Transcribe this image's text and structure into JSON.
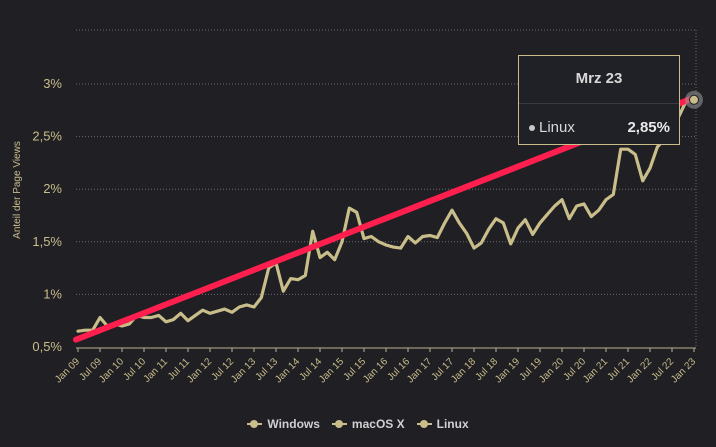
{
  "chart_data": {
    "type": "line",
    "ylabel": "Anteil der Page Views",
    "y_ticks": [
      "0,5%",
      "1%",
      "1,5%",
      "2%",
      "2,5%",
      "3%"
    ],
    "ylim": [
      0.4,
      3.4
    ],
    "x_ticks": [
      "Jan 09",
      "Jul 09",
      "Jan 10",
      "Jul 10",
      "Jan 11",
      "Jul 11",
      "Jan 12",
      "Jul 12",
      "Jan 13",
      "Jul 13",
      "Jan 14",
      "Jul 14",
      "Jan 15",
      "Jul 15",
      "Jan 16",
      "Jul 16",
      "Jan 17",
      "Jul 17",
      "Jan 18",
      "Jul 18",
      "Jan 19",
      "Jul 19",
      "Jan 20",
      "Jul 20",
      "Jan 21",
      "Jul 21",
      "Jan 22",
      "Jul 22",
      "Jan 23"
    ],
    "series": [
      {
        "name": "Linux",
        "color": "#c9bd8a",
        "points": [
          [
            0,
            0.65
          ],
          [
            1,
            0.66
          ],
          [
            2,
            0.66
          ],
          [
            3,
            0.78
          ],
          [
            4,
            0.7
          ],
          [
            5,
            0.72
          ],
          [
            6,
            0.7
          ],
          [
            7,
            0.72
          ],
          [
            8,
            0.8
          ],
          [
            9,
            0.78
          ],
          [
            10,
            0.78
          ],
          [
            11,
            0.8
          ],
          [
            12,
            0.74
          ],
          [
            13,
            0.76
          ],
          [
            14,
            0.82
          ],
          [
            15,
            0.75
          ],
          [
            16,
            0.8
          ],
          [
            17,
            0.85
          ],
          [
            18,
            0.82
          ],
          [
            19,
            0.84
          ],
          [
            20,
            0.86
          ],
          [
            21,
            0.83
          ],
          [
            22,
            0.88
          ],
          [
            23,
            0.9
          ],
          [
            24,
            0.88
          ],
          [
            25,
            0.97
          ],
          [
            26,
            1.25
          ],
          [
            27,
            1.3
          ],
          [
            28,
            1.03
          ],
          [
            29,
            1.15
          ],
          [
            30,
            1.14
          ],
          [
            31,
            1.18
          ],
          [
            32,
            1.6
          ],
          [
            33,
            1.35
          ],
          [
            34,
            1.4
          ],
          [
            35,
            1.33
          ],
          [
            36,
            1.5
          ],
          [
            37,
            1.82
          ],
          [
            38,
            1.78
          ],
          [
            39,
            1.53
          ],
          [
            40,
            1.55
          ],
          [
            41,
            1.5
          ],
          [
            42,
            1.47
          ],
          [
            43,
            1.45
          ],
          [
            44,
            1.44
          ],
          [
            45,
            1.55
          ],
          [
            46,
            1.49
          ],
          [
            47,
            1.55
          ],
          [
            48,
            1.56
          ],
          [
            49,
            1.54
          ],
          [
            50,
            1.68
          ],
          [
            51,
            1.8
          ],
          [
            52,
            1.68
          ],
          [
            53,
            1.58
          ],
          [
            54,
            1.44
          ],
          [
            55,
            1.49
          ],
          [
            56,
            1.62
          ],
          [
            57,
            1.72
          ],
          [
            58,
            1.68
          ],
          [
            59,
            1.48
          ],
          [
            60,
            1.63
          ],
          [
            61,
            1.71
          ],
          [
            62,
            1.57
          ],
          [
            63,
            1.68
          ],
          [
            64,
            1.76
          ],
          [
            65,
            1.84
          ],
          [
            66,
            1.9
          ],
          [
            67,
            1.72
          ],
          [
            68,
            1.84
          ],
          [
            69,
            1.86
          ],
          [
            70,
            1.74
          ],
          [
            71,
            1.8
          ],
          [
            72,
            1.9
          ],
          [
            73,
            1.95
          ],
          [
            74,
            2.38
          ],
          [
            75,
            2.38
          ],
          [
            76,
            2.33
          ],
          [
            77,
            2.08
          ],
          [
            78,
            2.2
          ],
          [
            79,
            2.4
          ],
          [
            80,
            2.48
          ],
          [
            81,
            2.6
          ],
          [
            82,
            2.7
          ],
          [
            83,
            2.85
          ],
          [
            84,
            2.85
          ]
        ]
      }
    ],
    "trend_line": {
      "color": "#ff1f4f",
      "start": [
        0,
        0.57
      ],
      "end": [
        84,
        2.87
      ]
    },
    "tooltip": {
      "title": "Mrz 23",
      "series": "Linux",
      "value": "2,85%"
    },
    "legend": [
      {
        "name": "Windows"
      },
      {
        "name": "macOS X"
      },
      {
        "name": "Linux"
      }
    ],
    "legend_position": "bottom-center"
  }
}
